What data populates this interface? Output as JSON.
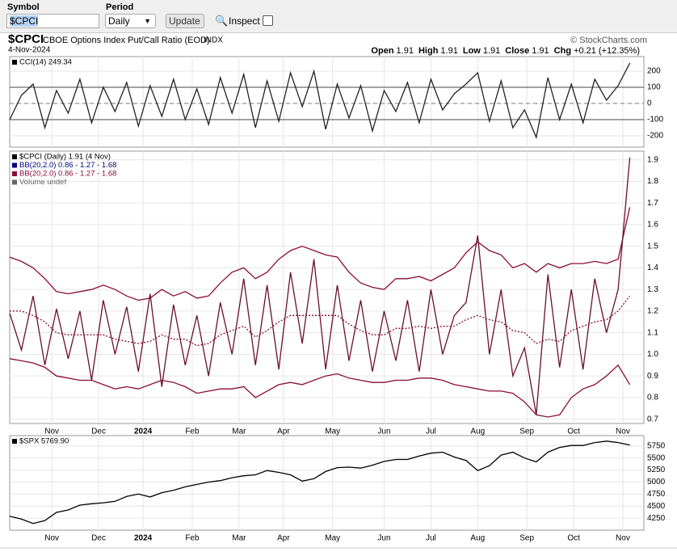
{
  "toolbar": {
    "symbol_label": "Symbol",
    "symbol_value": "$CPCI",
    "period_label": "Period",
    "period_value": "Daily",
    "update": "Update",
    "inspect": "Inspect"
  },
  "header": {
    "symbol": "$CPCI",
    "name": "CBOE Options Index Put/Call Ratio (EOD)",
    "exchange": "INDX",
    "date": "4-Nov-2024",
    "source": "© StockCharts.com",
    "quote": [
      {
        "label": "Open",
        "value": "1.91"
      },
      {
        "label": "High",
        "value": "1.91"
      },
      {
        "label": "Low",
        "value": "1.91"
      },
      {
        "label": "Close",
        "value": "1.91"
      },
      {
        "label": "Chg",
        "value": "+0.21 (+12.35%)"
      }
    ]
  },
  "chart_data": [
    {
      "type": "line",
      "legend": [
        {
          "text": "CCI(14) 249.34",
          "color": "#000000"
        }
      ],
      "x": [
        0,
        5,
        10,
        15,
        20,
        25,
        30,
        35,
        40,
        45,
        50,
        55,
        60,
        65,
        70,
        75,
        80,
        85,
        90,
        95,
        100,
        105,
        110,
        115,
        120,
        125,
        130,
        135,
        140,
        145,
        150,
        155,
        160,
        165,
        170,
        175,
        180,
        185,
        190,
        195,
        200,
        205,
        210,
        215,
        220,
        225,
        230,
        235,
        240,
        245,
        250,
        255,
        260,
        265
      ],
      "xlim": [
        0,
        271
      ],
      "ylim": [
        -270,
        290
      ],
      "yticks": [
        -200,
        -100,
        0,
        100,
        200
      ],
      "levels": [
        -100,
        100
      ],
      "center_line": 0,
      "series": [
        {
          "color": "#222222",
          "values": [
            -100,
            50,
            120,
            -150,
            80,
            -60,
            150,
            -120,
            100,
            -50,
            130,
            -140,
            110,
            -80,
            150,
            -100,
            90,
            -130,
            160,
            -60,
            180,
            -150,
            140,
            -110,
            190,
            -20,
            200,
            -160,
            120,
            -90,
            110,
            -170,
            80,
            -50,
            130,
            -120,
            150,
            -40,
            60,
            120,
            190,
            -110,
            140,
            -150,
            -40,
            -210,
            160,
            -100,
            120,
            -120,
            150,
            20,
            110,
            249.34
          ]
        }
      ]
    },
    {
      "type": "line",
      "legend": [
        {
          "text": "$CPCI (Daily) 1.91 (4 Nov)",
          "color": "#000000"
        },
        {
          "text": "BB(20,2.0) 0.86 - 1.27 - 1.68",
          "color": "#000080"
        },
        {
          "text": "BB(20,2.0) 0.86 - 1.27 - 1.68",
          "color": "#8b0a3a"
        },
        {
          "text": "Volume undef",
          "color": "#666666"
        }
      ],
      "x": [
        0,
        5,
        10,
        15,
        20,
        25,
        30,
        35,
        40,
        45,
        50,
        55,
        60,
        65,
        70,
        75,
        80,
        85,
        90,
        95,
        100,
        105,
        110,
        115,
        120,
        125,
        130,
        135,
        140,
        145,
        150,
        155,
        160,
        165,
        170,
        175,
        180,
        185,
        190,
        195,
        200,
        205,
        210,
        215,
        220,
        225,
        230,
        235,
        240,
        245,
        250,
        255,
        260,
        265
      ],
      "xlim": [
        0,
        271
      ],
      "ylim": [
        0.68,
        1.94
      ],
      "xticks": [
        {
          "value": 18,
          "label": "Nov"
        },
        {
          "value": 38,
          "label": "Dec"
        },
        {
          "value": 57,
          "label": "2024"
        },
        {
          "value": 78,
          "label": "Feb"
        },
        {
          "value": 98,
          "label": "Mar"
        },
        {
          "value": 117,
          "label": "Apr"
        },
        {
          "value": 138,
          "label": "May"
        },
        {
          "value": 160,
          "label": "Jun"
        },
        {
          "value": 180,
          "label": "Jul"
        },
        {
          "value": 200,
          "label": "Aug"
        },
        {
          "value": 221,
          "label": "Sep"
        },
        {
          "value": 241,
          "label": "Oct"
        },
        {
          "value": 262,
          "label": "Nov"
        }
      ],
      "yticks": [
        0.7,
        0.8,
        0.9,
        {
          "value": 1,
          "label": "1.0"
        },
        1.1,
        1.2,
        1.3,
        1.4,
        1.5,
        1.6,
        1.7,
        1.8,
        1.9
      ],
      "series": [
        {
          "color": "#8b0a3a",
          "values": [
            1.45,
            1.43,
            1.4,
            1.35,
            1.29,
            1.28,
            1.29,
            1.3,
            1.32,
            1.3,
            1.27,
            1.25,
            1.26,
            1.3,
            1.27,
            1.29,
            1.26,
            1.27,
            1.33,
            1.38,
            1.4,
            1.35,
            1.38,
            1.44,
            1.48,
            1.5,
            1.48,
            1.46,
            1.45,
            1.38,
            1.33,
            1.31,
            1.3,
            1.35,
            1.35,
            1.36,
            1.34,
            1.37,
            1.4,
            1.47,
            1.52,
            1.48,
            1.46,
            1.4,
            1.42,
            1.38,
            1.42,
            1.4,
            1.42,
            1.42,
            1.43,
            1.42,
            1.44,
            1.68
          ]
        },
        {
          "color": "#8b0a3a",
          "dash": true,
          "values": [
            1.2,
            1.2,
            1.18,
            1.15,
            1.1,
            1.09,
            1.09,
            1.09,
            1.09,
            1.07,
            1.06,
            1.05,
            1.06,
            1.09,
            1.07,
            1.07,
            1.04,
            1.05,
            1.09,
            1.11,
            1.13,
            1.08,
            1.11,
            1.15,
            1.18,
            1.18,
            1.18,
            1.18,
            1.18,
            1.14,
            1.11,
            1.09,
            1.09,
            1.12,
            1.12,
            1.13,
            1.12,
            1.13,
            1.13,
            1.16,
            1.18,
            1.16,
            1.15,
            1.11,
            1.1,
            1.05,
            1.07,
            1.06,
            1.11,
            1.13,
            1.15,
            1.16,
            1.2,
            1.27
          ]
        },
        {
          "color": "#8b0a3a",
          "values": [
            0.98,
            0.97,
            0.96,
            0.94,
            0.9,
            0.89,
            0.88,
            0.88,
            0.86,
            0.84,
            0.85,
            0.84,
            0.86,
            0.88,
            0.87,
            0.85,
            0.82,
            0.83,
            0.84,
            0.84,
            0.85,
            0.8,
            0.83,
            0.86,
            0.87,
            0.86,
            0.88,
            0.9,
            0.91,
            0.89,
            0.88,
            0.87,
            0.87,
            0.88,
            0.88,
            0.89,
            0.89,
            0.88,
            0.86,
            0.85,
            0.84,
            0.83,
            0.83,
            0.82,
            0.78,
            0.72,
            0.71,
            0.72,
            0.8,
            0.84,
            0.86,
            0.9,
            0.95,
            0.86
          ]
        },
        {
          "color": "#6a0f2e",
          "values": [
            1.19,
            1.02,
            1.27,
            0.95,
            1.21,
            0.98,
            1.2,
            0.88,
            1.25,
            1.0,
            1.22,
            0.92,
            1.28,
            0.85,
            1.23,
            0.95,
            1.18,
            0.9,
            1.24,
            1.0,
            1.35,
            0.95,
            1.32,
            0.93,
            1.38,
            1.05,
            1.44,
            0.93,
            1.32,
            0.97,
            1.25,
            0.92,
            1.2,
            0.97,
            1.25,
            0.92,
            1.3,
            1.0,
            1.18,
            1.24,
            1.55,
            1.0,
            1.3,
            0.9,
            1.03,
            0.72,
            1.37,
            0.94,
            1.3,
            0.93,
            1.35,
            1.1,
            1.3,
            1.91
          ]
        }
      ]
    },
    {
      "type": "line",
      "legend": [
        {
          "text": "$SPX 5769.90",
          "color": "#000000"
        }
      ],
      "x": [
        0,
        5,
        10,
        15,
        20,
        25,
        30,
        35,
        40,
        45,
        50,
        55,
        60,
        65,
        70,
        75,
        80,
        85,
        90,
        95,
        100,
        105,
        110,
        115,
        120,
        125,
        130,
        135,
        140,
        145,
        150,
        155,
        160,
        165,
        170,
        175,
        180,
        185,
        190,
        195,
        200,
        205,
        210,
        215,
        220,
        225,
        230,
        235,
        240,
        245,
        250,
        255,
        260,
        265
      ],
      "xlim": [
        0,
        271
      ],
      "ylim": [
        4000,
        5965
      ],
      "xticks": [
        {
          "value": 18,
          "label": "Nov"
        },
        {
          "value": 38,
          "label": "Dec"
        },
        {
          "value": 57,
          "label": "2024"
        },
        {
          "value": 78,
          "label": "Feb"
        },
        {
          "value": 98,
          "label": "Mar"
        },
        {
          "value": 117,
          "label": "Apr"
        },
        {
          "value": 138,
          "label": "May"
        },
        {
          "value": 160,
          "label": "Jun"
        },
        {
          "value": 180,
          "label": "Jul"
        },
        {
          "value": 200,
          "label": "Aug"
        },
        {
          "value": 221,
          "label": "Sep"
        },
        {
          "value": 241,
          "label": "Oct"
        },
        {
          "value": 262,
          "label": "Nov"
        }
      ],
      "yticks": [
        4250,
        4500,
        4750,
        5000,
        5250,
        5500,
        5750
      ],
      "series": [
        {
          "color": "#000000",
          "values": [
            4290,
            4230,
            4140,
            4200,
            4370,
            4420,
            4520,
            4550,
            4570,
            4600,
            4700,
            4750,
            4690,
            4780,
            4830,
            4900,
            4950,
            5000,
            5030,
            5090,
            5130,
            5150,
            5240,
            5200,
            5150,
            5020,
            5070,
            5220,
            5300,
            5310,
            5290,
            5350,
            5430,
            5470,
            5470,
            5540,
            5600,
            5620,
            5520,
            5450,
            5240,
            5340,
            5560,
            5620,
            5500,
            5420,
            5620,
            5720,
            5760,
            5760,
            5820,
            5850,
            5820,
            5769.9
          ]
        }
      ]
    }
  ]
}
